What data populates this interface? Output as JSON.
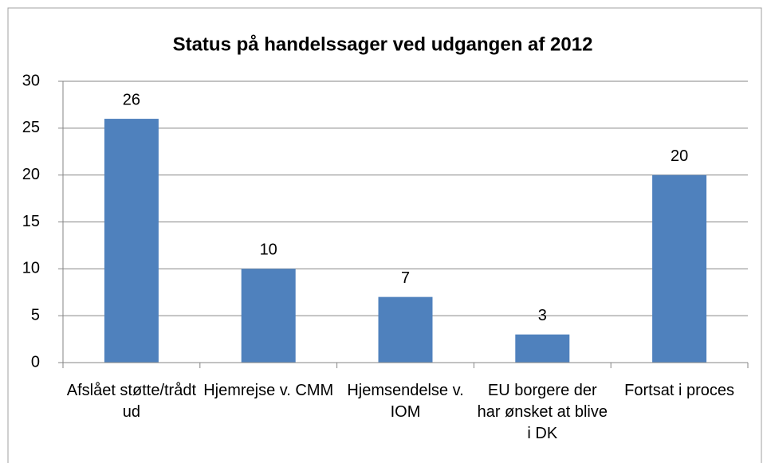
{
  "chart_data": {
    "type": "bar",
    "title": "Status på handelssager ved udgangen af 2012",
    "categories": [
      "Afslået støtte/trådt ud",
      "Hjemrejse v. CMM",
      "Hjemsendelse v. IOM",
      "EU borgere der har ønsket at blive i DK",
      "Fortsat i proces"
    ],
    "values": [
      26,
      10,
      7,
      3,
      20
    ],
    "color": "#4f81bd",
    "ylim": [
      0,
      30
    ],
    "yticks": [
      0,
      5,
      10,
      15,
      20,
      25,
      30
    ],
    "grid": true
  }
}
